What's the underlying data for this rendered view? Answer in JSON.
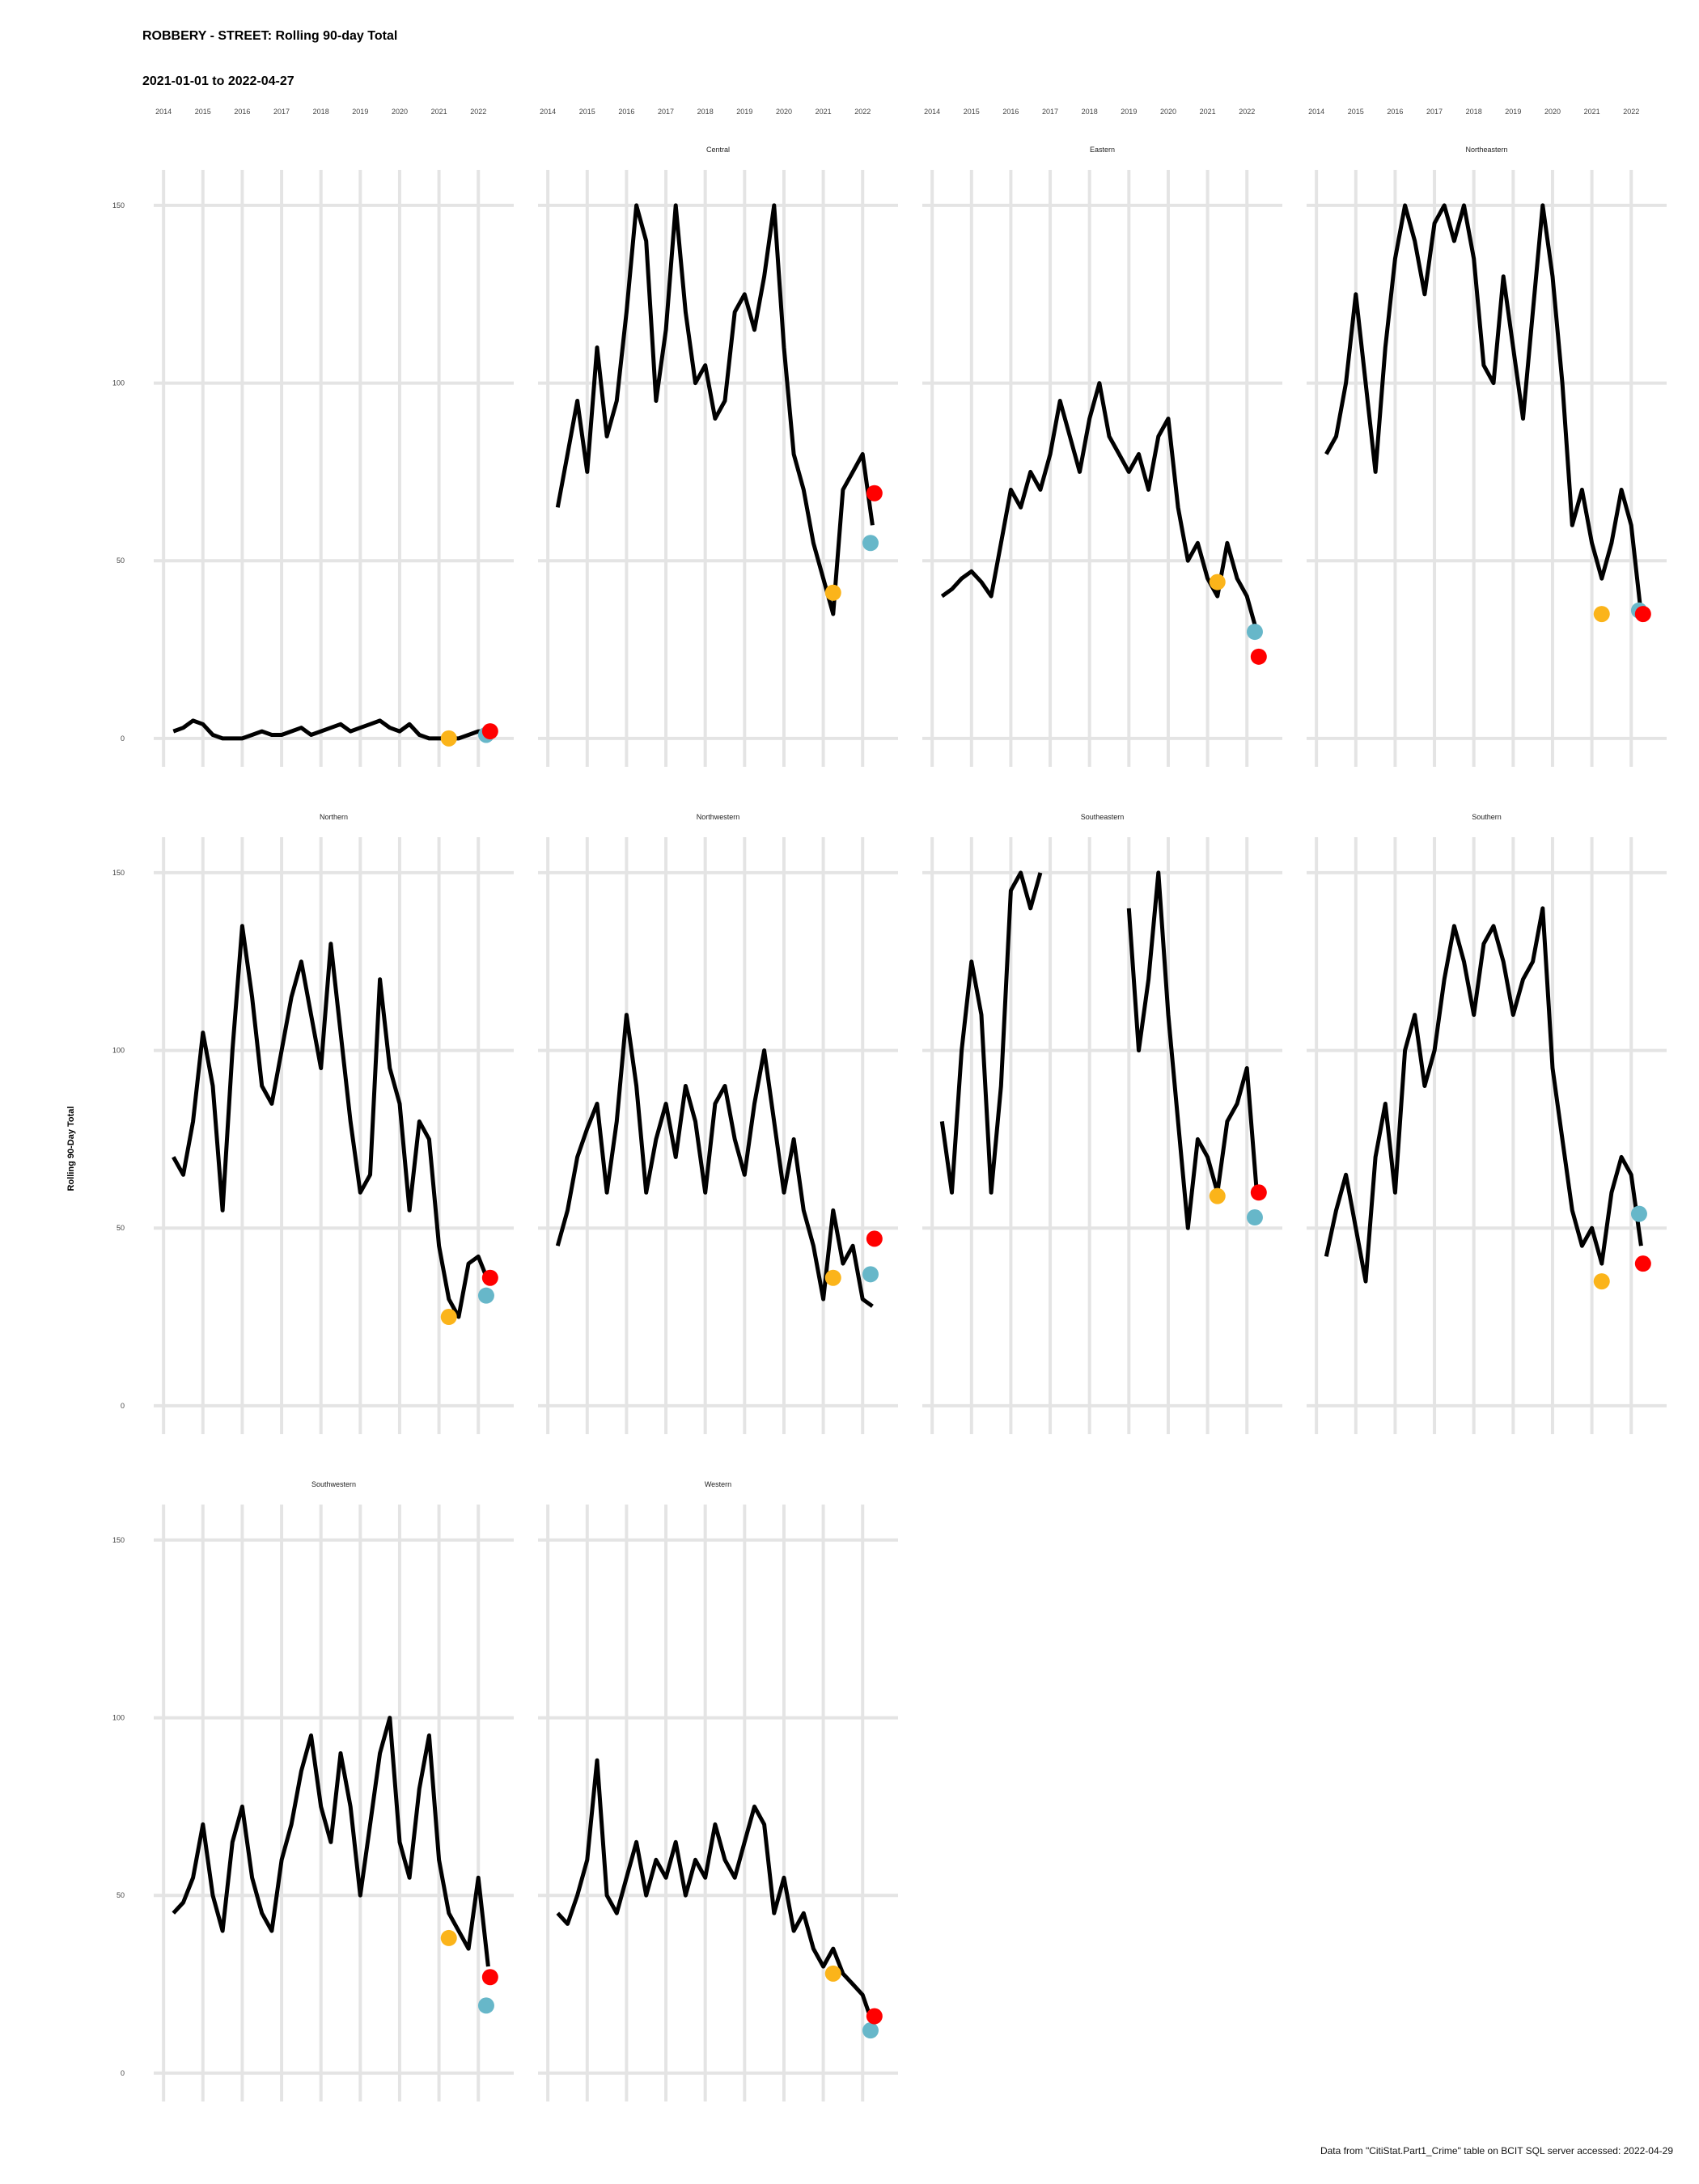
{
  "chart_data": {
    "type": "line",
    "title": "ROBBERY - STREET: Rolling 90-day Total",
    "subtitle": "2021-01-01 to 2022-04-27",
    "ylabel": "Rolling 90-Day Total",
    "xlabel": "",
    "caption": "Data from \"CitiStat.Part1_Crime\" table on BCIT SQL server accessed: 2022-04-29",
    "xlim": [
      2013.75,
      2022.9
    ],
    "ylim": [
      -8,
      160
    ],
    "x_ticks": [
      2014,
      2015,
      2016,
      2017,
      2018,
      2019,
      2020,
      2021,
      2022
    ],
    "x_tick_labels": [
      "2014",
      "2015",
      "2016",
      "2017",
      "2018",
      "2019",
      "2020",
      "2021",
      "2022"
    ],
    "y_ticks": [
      0,
      50,
      100,
      150
    ],
    "y_tick_labels": [
      "0",
      "50",
      "100",
      "150"
    ],
    "grid": true,
    "marker_colors": {
      "start": "#fbb41a",
      "mid": "#67b7c9",
      "end": "#ff0000"
    },
    "line_color": "#000000",
    "panels": [
      {
        "name": "",
        "x": [
          2014.25,
          2014.5,
          2014.75,
          2015,
          2015.25,
          2015.5,
          2015.75,
          2016,
          2016.25,
          2016.5,
          2016.75,
          2017,
          2017.25,
          2017.5,
          2017.75,
          2018,
          2018.25,
          2018.5,
          2018.75,
          2019,
          2019.25,
          2019.5,
          2019.75,
          2020,
          2020.25,
          2020.5,
          2020.75,
          2021,
          2021.25,
          2021.5,
          2021.75,
          2022,
          2022.25
        ],
        "values": [
          2,
          3,
          5,
          4,
          1,
          0,
          0,
          0,
          1,
          2,
          1,
          1,
          2,
          3,
          1,
          2,
          3,
          4,
          2,
          3,
          4,
          5,
          3,
          2,
          4,
          1,
          0,
          0,
          0,
          0,
          1,
          2,
          2
        ],
        "markers": {
          "start": [
            2021.25,
            0
          ],
          "mid": [
            2022.2,
            1
          ],
          "end": [
            2022.3,
            2
          ]
        }
      },
      {
        "name": "Central",
        "x": [
          2014.25,
          2014.5,
          2014.75,
          2015,
          2015.25,
          2015.5,
          2015.75,
          2016,
          2016.25,
          2016.5,
          2016.75,
          2017,
          2017.25,
          2017.5,
          2017.75,
          2018,
          2018.25,
          2018.5,
          2018.75,
          2019,
          2019.25,
          2019.5,
          2019.75,
          2020,
          2020.25,
          2020.5,
          2020.75,
          2021,
          2021.25,
          2021.5,
          2021.75,
          2022,
          2022.25
        ],
        "values": [
          65,
          80,
          95,
          75,
          110,
          85,
          95,
          120,
          150,
          140,
          95,
          115,
          150,
          120,
          100,
          105,
          90,
          95,
          120,
          125,
          115,
          130,
          150,
          110,
          80,
          70,
          55,
          45,
          35,
          70,
          75,
          80,
          60
        ],
        "markers": {
          "start": [
            2021.25,
            41
          ],
          "mid": [
            2022.2,
            55
          ],
          "end": [
            2022.3,
            69
          ]
        }
      },
      {
        "name": "Eastern",
        "x": [
          2014.25,
          2014.5,
          2014.75,
          2015,
          2015.25,
          2015.5,
          2015.75,
          2016,
          2016.25,
          2016.5,
          2016.75,
          2017,
          2017.25,
          2017.5,
          2017.75,
          2018,
          2018.25,
          2018.5,
          2018.75,
          2019,
          2019.25,
          2019.5,
          2019.75,
          2020,
          2020.25,
          2020.5,
          2020.75,
          2021,
          2021.25,
          2021.5,
          2021.75,
          2022,
          2022.25
        ],
        "values": [
          40,
          42,
          45,
          47,
          44,
          40,
          55,
          70,
          65,
          75,
          70,
          80,
          95,
          85,
          75,
          90,
          100,
          85,
          80,
          75,
          80,
          70,
          85,
          90,
          65,
          50,
          55,
          45,
          40,
          55,
          45,
          40,
          30
        ],
        "markers": {
          "start": [
            2021.25,
            44
          ],
          "mid": [
            2022.2,
            30
          ],
          "end": [
            2022.3,
            23
          ]
        }
      },
      {
        "name": "Northeastern",
        "x": [
          2014.25,
          2014.5,
          2014.75,
          2015,
          2015.25,
          2015.5,
          2015.75,
          2016,
          2016.25,
          2016.5,
          2016.75,
          2017,
          2017.25,
          2017.5,
          2017.75,
          2018,
          2018.25,
          2018.5,
          2018.75,
          2019,
          2019.25,
          2019.5,
          2019.75,
          2020,
          2020.25,
          2020.5,
          2020.75,
          2021,
          2021.25,
          2021.5,
          2021.75,
          2022,
          2022.25
        ],
        "values": [
          80,
          85,
          100,
          125,
          100,
          75,
          110,
          135,
          150,
          140,
          125,
          145,
          150,
          140,
          150,
          135,
          105,
          100,
          130,
          110,
          90,
          120,
          150,
          130,
          100,
          60,
          70,
          55,
          45,
          55,
          70,
          60,
          35
        ],
        "markers": {
          "start": [
            2021.25,
            35
          ],
          "mid": [
            2022.2,
            36
          ],
          "end": [
            2022.3,
            35
          ]
        }
      },
      {
        "name": "Northern",
        "x": [
          2014.25,
          2014.5,
          2014.75,
          2015,
          2015.25,
          2015.5,
          2015.75,
          2016,
          2016.25,
          2016.5,
          2016.75,
          2017,
          2017.25,
          2017.5,
          2017.75,
          2018,
          2018.25,
          2018.5,
          2018.75,
          2019,
          2019.25,
          2019.5,
          2019.75,
          2020,
          2020.25,
          2020.5,
          2020.75,
          2021,
          2021.25,
          2021.5,
          2021.75,
          2022,
          2022.25
        ],
        "values": [
          70,
          65,
          80,
          105,
          90,
          55,
          100,
          135,
          115,
          90,
          85,
          100,
          115,
          125,
          110,
          95,
          130,
          105,
          80,
          60,
          65,
          120,
          95,
          85,
          55,
          80,
          75,
          45,
          30,
          25,
          40,
          42,
          35
        ],
        "markers": {
          "start": [
            2021.25,
            25
          ],
          "mid": [
            2022.2,
            31
          ],
          "end": [
            2022.3,
            36
          ]
        }
      },
      {
        "name": "Northwestern",
        "x": [
          2014.25,
          2014.5,
          2014.75,
          2015,
          2015.25,
          2015.5,
          2015.75,
          2016,
          2016.25,
          2016.5,
          2016.75,
          2017,
          2017.25,
          2017.5,
          2017.75,
          2018,
          2018.25,
          2018.5,
          2018.75,
          2019,
          2019.25,
          2019.5,
          2019.75,
          2020,
          2020.25,
          2020.5,
          2020.75,
          2021,
          2021.25,
          2021.5,
          2021.75,
          2022,
          2022.25
        ],
        "values": [
          45,
          55,
          70,
          78,
          85,
          60,
          80,
          110,
          90,
          60,
          75,
          85,
          70,
          90,
          80,
          60,
          85,
          90,
          75,
          65,
          85,
          100,
          80,
          60,
          75,
          55,
          45,
          30,
          55,
          40,
          45,
          30,
          28
        ],
        "markers": {
          "start": [
            2021.25,
            36
          ],
          "mid": [
            2022.2,
            37
          ],
          "end": [
            2022.3,
            47
          ]
        }
      },
      {
        "name": "Southeastern",
        "x": [
          2014.25,
          2014.5,
          2014.75,
          2015,
          2015.25,
          2015.5,
          2015.75,
          2016,
          2016.25,
          2016.5,
          2016.75,
          2017,
          2017.25,
          2017.5,
          2017.75,
          2018,
          2018.25,
          2018.5,
          2018.75,
          2019,
          2019.25,
          2019.5,
          2019.75,
          2020,
          2020.25,
          2020.5,
          2020.75,
          2021,
          2021.25,
          2021.5,
          2021.75,
          2022,
          2022.25
        ],
        "values": [
          80,
          60,
          100,
          125,
          110,
          60,
          90,
          145,
          150,
          140,
          150,
          null,
          null,
          145,
          null,
          null,
          150,
          null,
          null,
          140,
          100,
          120,
          150,
          110,
          80,
          50,
          75,
          70,
          60,
          80,
          85,
          95,
          60
        ],
        "markers": {
          "start": [
            2021.25,
            59
          ],
          "mid": [
            2022.2,
            53
          ],
          "end": [
            2022.3,
            60
          ]
        }
      },
      {
        "name": "Southern",
        "x": [
          2014.25,
          2014.5,
          2014.75,
          2015,
          2015.25,
          2015.5,
          2015.75,
          2016,
          2016.25,
          2016.5,
          2016.75,
          2017,
          2017.25,
          2017.5,
          2017.75,
          2018,
          2018.25,
          2018.5,
          2018.75,
          2019,
          2019.25,
          2019.5,
          2019.75,
          2020,
          2020.25,
          2020.5,
          2020.75,
          2021,
          2021.25,
          2021.5,
          2021.75,
          2022,
          2022.25
        ],
        "values": [
          42,
          55,
          65,
          50,
          35,
          70,
          85,
          60,
          100,
          110,
          90,
          100,
          120,
          135,
          125,
          110,
          130,
          135,
          125,
          110,
          120,
          125,
          140,
          95,
          75,
          55,
          45,
          50,
          40,
          60,
          70,
          65,
          45
        ],
        "markers": {
          "start": [
            2021.25,
            35
          ],
          "mid": [
            2022.2,
            54
          ],
          "end": [
            2022.3,
            40
          ]
        }
      },
      {
        "name": "Southwestern",
        "x": [
          2014.25,
          2014.5,
          2014.75,
          2015,
          2015.25,
          2015.5,
          2015.75,
          2016,
          2016.25,
          2016.5,
          2016.75,
          2017,
          2017.25,
          2017.5,
          2017.75,
          2018,
          2018.25,
          2018.5,
          2018.75,
          2019,
          2019.25,
          2019.5,
          2019.75,
          2020,
          2020.25,
          2020.5,
          2020.75,
          2021,
          2021.25,
          2021.5,
          2021.75,
          2022,
          2022.25
        ],
        "values": [
          45,
          48,
          55,
          70,
          50,
          40,
          65,
          75,
          55,
          45,
          40,
          60,
          70,
          85,
          95,
          75,
          65,
          90,
          75,
          50,
          70,
          90,
          100,
          65,
          55,
          80,
          95,
          60,
          45,
          40,
          35,
          55,
          30
        ],
        "markers": {
          "start": [
            2021.25,
            38
          ],
          "mid": [
            2022.2,
            19
          ],
          "end": [
            2022.3,
            27
          ]
        }
      },
      {
        "name": "Western",
        "x": [
          2014.25,
          2014.5,
          2014.75,
          2015,
          2015.25,
          2015.5,
          2015.75,
          2016,
          2016.25,
          2016.5,
          2016.75,
          2017,
          2017.25,
          2017.5,
          2017.75,
          2018,
          2018.25,
          2018.5,
          2018.75,
          2019,
          2019.25,
          2019.5,
          2019.75,
          2020,
          2020.25,
          2020.5,
          2020.75,
          2021,
          2021.25,
          2021.5,
          2021.75,
          2022,
          2022.25
        ],
        "values": [
          45,
          42,
          50,
          60,
          88,
          50,
          45,
          55,
          65,
          50,
          60,
          55,
          65,
          50,
          60,
          55,
          70,
          60,
          55,
          65,
          75,
          70,
          45,
          55,
          40,
          45,
          35,
          30,
          35,
          28,
          25,
          22,
          14
        ],
        "markers": {
          "start": [
            2021.25,
            28
          ],
          "mid": [
            2022.2,
            12
          ],
          "end": [
            2022.3,
            16
          ]
        }
      }
    ]
  }
}
